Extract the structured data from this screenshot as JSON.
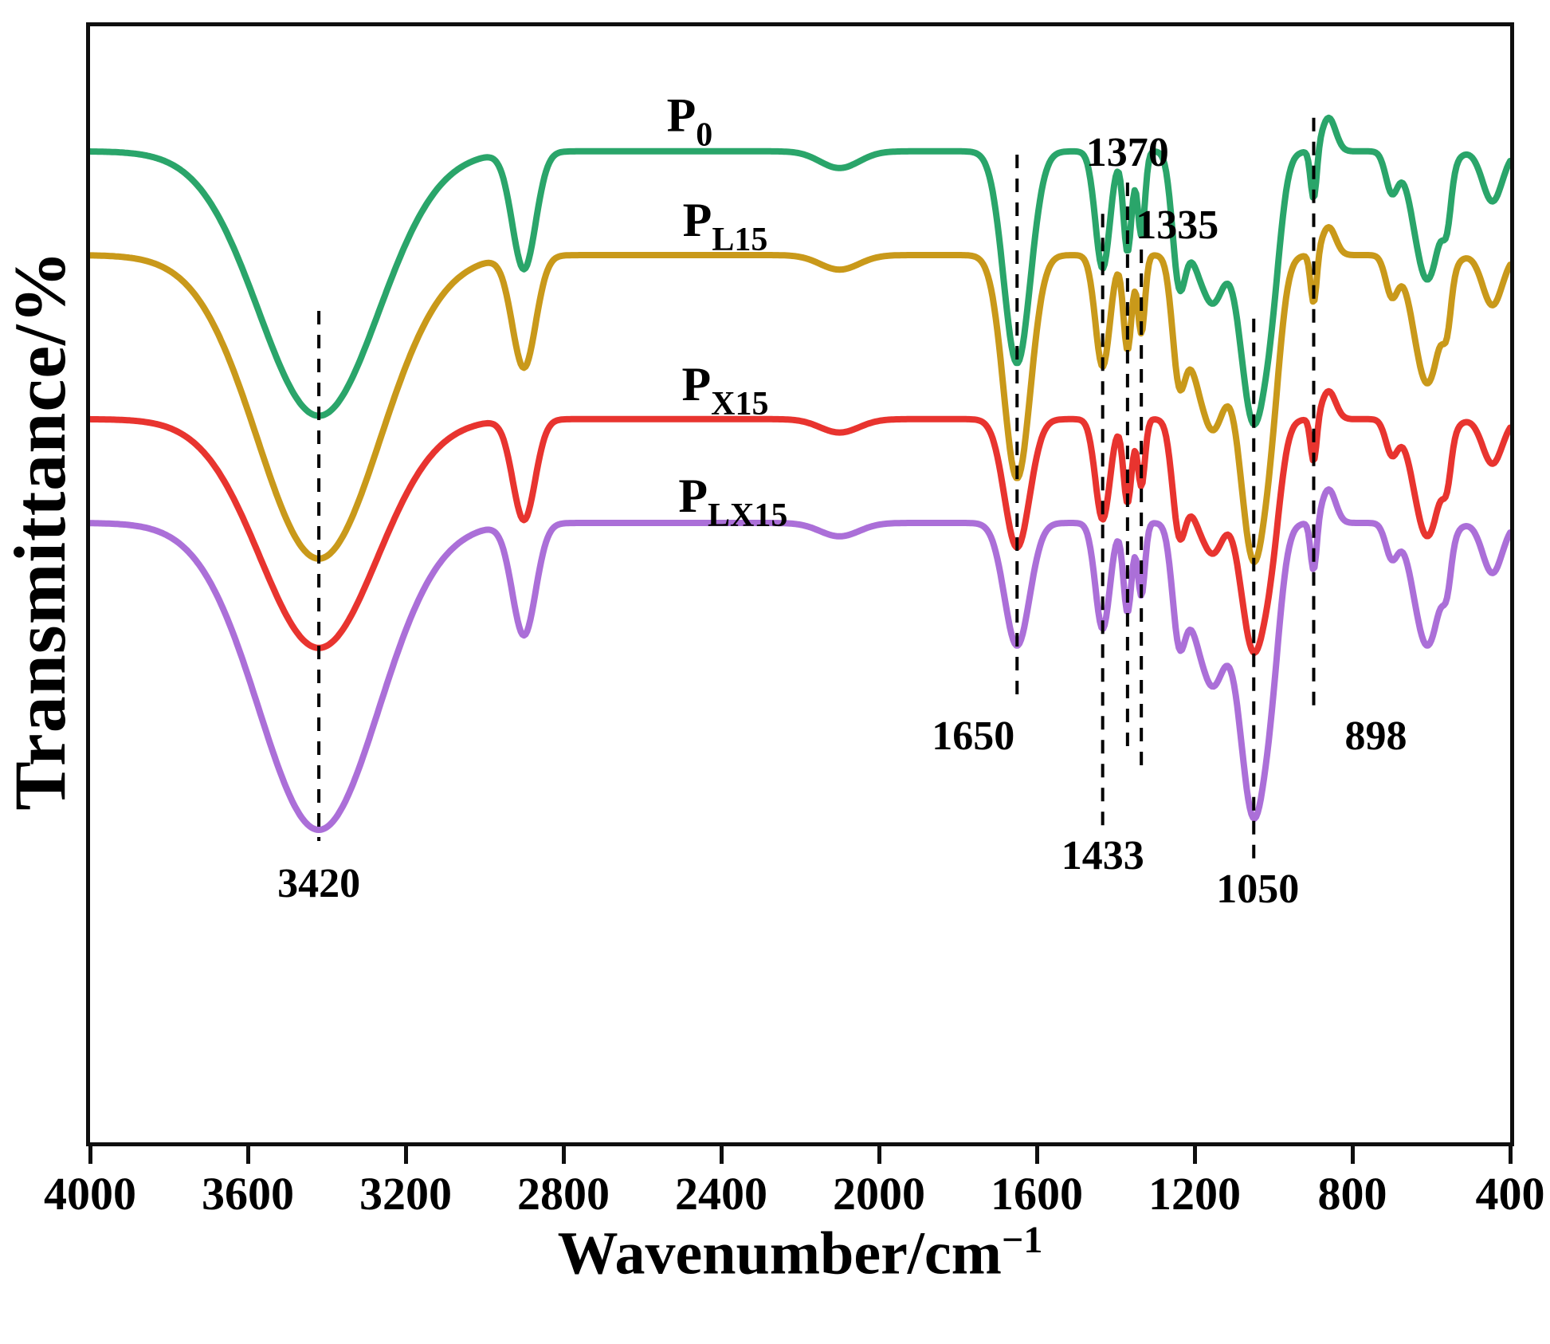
{
  "figure": {
    "background": "#ffffff",
    "border_color": "#0f0f0f"
  },
  "chart_data": {
    "type": "line",
    "title": "",
    "xlabel": "Wavenumber/cm⁻¹",
    "xlabel_parts": {
      "main": "Wavenumber/cm",
      "sup": "−1"
    },
    "ylabel": "Transmittance/%",
    "grid": false,
    "legend_position": "inline-labels-above-curves",
    "x_axis": {
      "min": 4000,
      "max": 400,
      "reversed": true,
      "unit": "cm-1",
      "ticks": [
        4000,
        3600,
        3200,
        2800,
        2400,
        2000,
        1600,
        1200,
        800,
        400
      ]
    },
    "y_axis": {
      "label": "Transmittance/%",
      "tick_labels_visible": false,
      "note": "arbitrary offset transmittance, curves stacked top to bottom: P0, PL15, PX15, PLX15"
    },
    "series": [
      {
        "name": "P0",
        "label": {
          "main": "P",
          "sub": "0"
        },
        "color": "#2aa56a",
        "baseline": 0.112,
        "label_anchor": {
          "wavenumber": 2480,
          "y": 0.094
        },
        "peaks": [
          [
            3420,
            215,
            0.237
          ],
          [
            2900,
            42,
            0.105
          ],
          [
            2100,
            70,
            0.015
          ],
          [
            1650,
            48,
            0.19
          ],
          [
            1433,
            26,
            0.105
          ],
          [
            1370,
            15,
            0.09
          ],
          [
            1335,
            13,
            0.075
          ],
          [
            1240,
            24,
            0.105
          ],
          [
            1205,
            30,
            0.04
          ],
          [
            1155,
            50,
            0.13
          ],
          [
            1050,
            52,
            0.24
          ],
          [
            1000,
            30,
            0.05
          ],
          [
            898,
            11,
            0.045
          ],
          [
            860,
            25,
            -0.03
          ],
          [
            700,
            22,
            0.035
          ],
          [
            610,
            48,
            0.115
          ],
          [
            560,
            15,
            0.035
          ],
          [
            445,
            35,
            0.045
          ]
        ]
      },
      {
        "name": "PL15",
        "label": {
          "main": "P",
          "sub": "L15"
        },
        "color": "#c9991a",
        "baseline": 0.205,
        "label_anchor": {
          "wavenumber": 2390,
          "y": 0.188
        },
        "peaks": [
          [
            3420,
            220,
            0.272
          ],
          [
            2900,
            42,
            0.1
          ],
          [
            2100,
            70,
            0.013
          ],
          [
            1650,
            48,
            0.2
          ],
          [
            1433,
            26,
            0.1
          ],
          [
            1370,
            15,
            0.085
          ],
          [
            1335,
            13,
            0.07
          ],
          [
            1240,
            24,
            0.1
          ],
          [
            1205,
            30,
            0.038
          ],
          [
            1155,
            50,
            0.15
          ],
          [
            1050,
            52,
            0.27
          ],
          [
            1000,
            30,
            0.05
          ],
          [
            898,
            11,
            0.045
          ],
          [
            860,
            25,
            -0.025
          ],
          [
            700,
            22,
            0.035
          ],
          [
            610,
            48,
            0.115
          ],
          [
            560,
            15,
            0.035
          ],
          [
            445,
            35,
            0.045
          ]
        ]
      },
      {
        "name": "PX15",
        "label": {
          "main": "P",
          "sub": "X15"
        },
        "color": "#e8342f",
        "baseline": 0.352,
        "label_anchor": {
          "wavenumber": 2390,
          "y": 0.335
        },
        "peaks": [
          [
            3420,
            210,
            0.205
          ],
          [
            2900,
            40,
            0.09
          ],
          [
            2100,
            70,
            0.012
          ],
          [
            1650,
            45,
            0.115
          ],
          [
            1433,
            26,
            0.09
          ],
          [
            1370,
            15,
            0.075
          ],
          [
            1335,
            13,
            0.06
          ],
          [
            1240,
            24,
            0.09
          ],
          [
            1205,
            30,
            0.035
          ],
          [
            1155,
            50,
            0.115
          ],
          [
            1050,
            52,
            0.205
          ],
          [
            1000,
            30,
            0.045
          ],
          [
            898,
            11,
            0.04
          ],
          [
            860,
            25,
            -0.025
          ],
          [
            700,
            22,
            0.03
          ],
          [
            610,
            48,
            0.105
          ],
          [
            560,
            15,
            0.03
          ],
          [
            445,
            35,
            0.04
          ]
        ]
      },
      {
        "name": "PLX15",
        "label": {
          "main": "P",
          "sub": "LX15"
        },
        "color": "#ab6fd8",
        "baseline": 0.445,
        "label_anchor": {
          "wavenumber": 2370,
          "y": 0.435
        },
        "peaks": [
          [
            3420,
            215,
            0.275
          ],
          [
            2900,
            42,
            0.1
          ],
          [
            2100,
            70,
            0.012
          ],
          [
            1650,
            45,
            0.11
          ],
          [
            1433,
            26,
            0.095
          ],
          [
            1370,
            15,
            0.08
          ],
          [
            1335,
            13,
            0.065
          ],
          [
            1240,
            24,
            0.095
          ],
          [
            1205,
            30,
            0.035
          ],
          [
            1155,
            50,
            0.14
          ],
          [
            1050,
            52,
            0.26
          ],
          [
            1000,
            30,
            0.05
          ],
          [
            898,
            11,
            0.045
          ],
          [
            860,
            25,
            -0.03
          ],
          [
            700,
            22,
            0.03
          ],
          [
            610,
            48,
            0.11
          ],
          [
            560,
            15,
            0.03
          ],
          [
            445,
            35,
            0.045
          ]
        ]
      }
    ],
    "annotations": [
      {
        "label": "3420",
        "wavenumber": 3420,
        "line": [
          0.255,
          0.73
        ],
        "label_y": 0.78,
        "anchor": "middle",
        "dx": 0
      },
      {
        "label": "1650",
        "wavenumber": 1650,
        "line": [
          0.115,
          0.6
        ],
        "label_y": 0.648,
        "anchor": "middle",
        "dx": -55
      },
      {
        "label": "1433",
        "wavenumber": 1433,
        "line": [
          0.168,
          0.72
        ],
        "label_y": 0.755,
        "anchor": "middle",
        "dx": 0
      },
      {
        "label": "1370",
        "wavenumber": 1370,
        "line": [
          0.14,
          0.645
        ],
        "label_y": 0.125,
        "anchor": "middle",
        "dx": 0
      },
      {
        "label": "1335",
        "wavenumber": 1335,
        "line": [
          0.2,
          0.665
        ],
        "label_y": 0.19,
        "anchor": "middle",
        "dx": 45
      },
      {
        "label": "1050",
        "wavenumber": 1050,
        "line": [
          0.262,
          0.748
        ],
        "label_y": 0.785,
        "anchor": "middle",
        "dx": 5
      },
      {
        "label": "898",
        "wavenumber": 898,
        "line": [
          0.082,
          0.615
        ],
        "label_y": 0.648,
        "anchor": "middle",
        "dx": 78
      }
    ]
  }
}
